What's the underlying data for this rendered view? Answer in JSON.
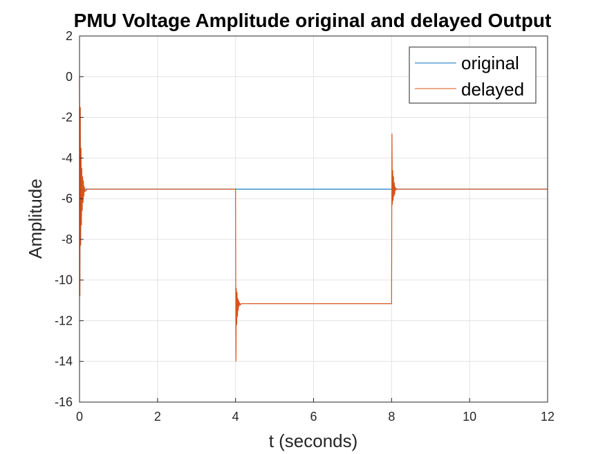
{
  "chart_data": {
    "type": "line",
    "title": "PMU Voltage Amplitude original and delayed Output",
    "xlabel": "t (seconds)",
    "ylabel": "Amplitude",
    "xlim": [
      0,
      12
    ],
    "ylim": [
      -16,
      2
    ],
    "xticks": [
      "0",
      "2",
      "4",
      "6",
      "8",
      "10",
      "12"
    ],
    "yticks": [
      "2",
      "0",
      "-2",
      "-4",
      "-6",
      "-8",
      "-10",
      "-12",
      "-14",
      "-16"
    ],
    "grid": true,
    "legend_position": "top-right",
    "series": [
      {
        "name": "original",
        "color": "#0072BD",
        "x": [
          0.12,
          4.0,
          8.0,
          12.0
        ],
        "y": [
          -5.53,
          -5.53,
          -5.53,
          -5.53
        ]
      },
      {
        "name": "delayed",
        "color": "#D95319",
        "x": [
          0.0,
          0.01,
          0.02,
          0.03,
          0.04,
          0.05,
          0.06,
          0.07,
          0.08,
          0.09,
          0.1,
          0.11,
          0.12,
          0.14,
          0.2,
          4.0,
          4.01,
          4.02,
          4.03,
          4.04,
          4.05,
          4.06,
          4.07,
          4.08,
          4.09,
          4.1,
          4.12,
          4.15,
          4.2,
          8.0,
          8.01,
          8.02,
          8.03,
          8.04,
          8.05,
          8.06,
          8.07,
          8.08,
          8.09,
          8.1,
          8.12,
          8.15,
          8.2,
          12.0
        ],
        "y": [
          0.0,
          -10.8,
          -1.5,
          -8.3,
          -3.5,
          -7.3,
          -4.5,
          -6.6,
          -4.9,
          -6.2,
          -5.1,
          -5.9,
          -5.4,
          -5.65,
          -5.53,
          -5.53,
          -14.0,
          -10.4,
          -12.2,
          -10.6,
          -11.8,
          -10.9,
          -11.5,
          -11.0,
          -11.3,
          -11.1,
          -11.22,
          -11.16,
          -11.16,
          -11.16,
          -2.8,
          -6.3,
          -4.6,
          -6.1,
          -4.9,
          -5.9,
          -5.2,
          -5.8,
          -5.4,
          -5.6,
          -5.5,
          -5.55,
          -5.53,
          -5.53
        ]
      }
    ]
  }
}
